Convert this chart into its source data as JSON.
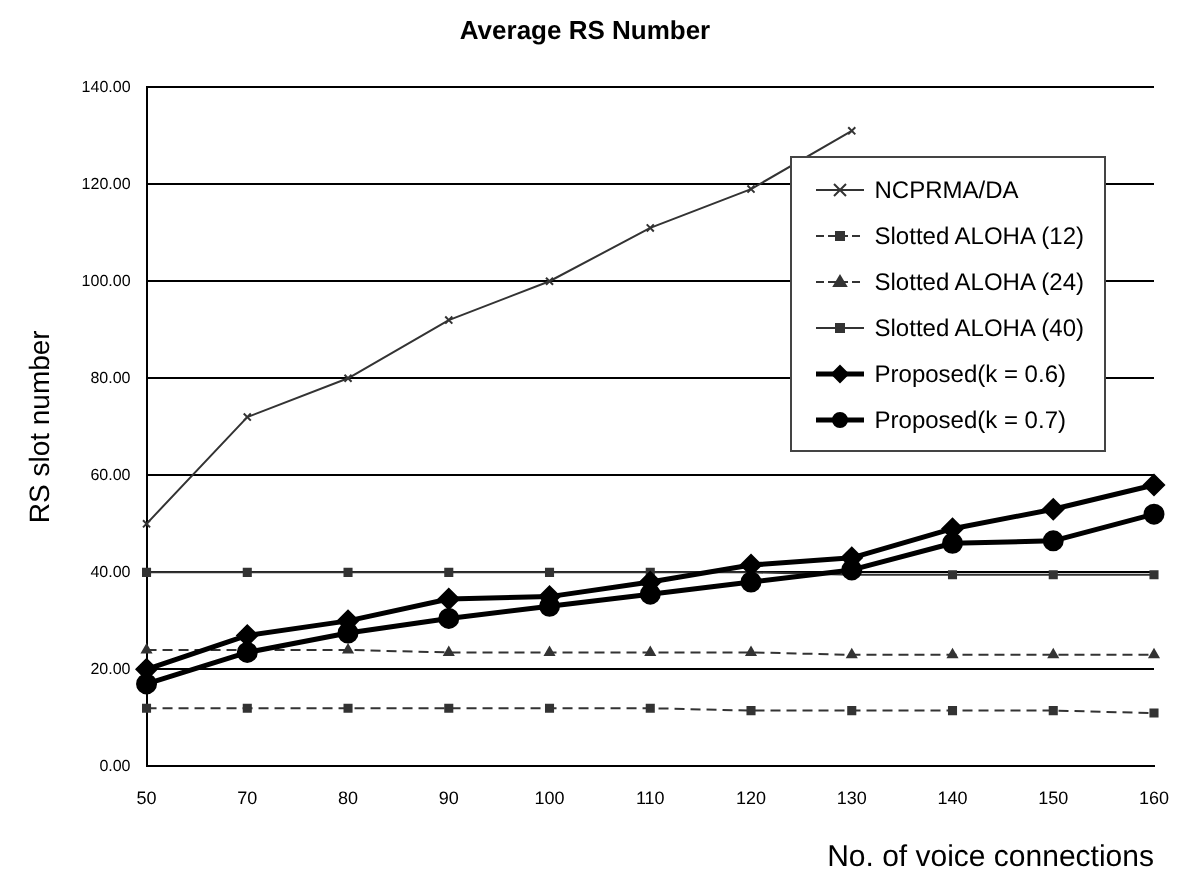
{
  "chart_data": {
    "type": "line",
    "title": "Average RS Number",
    "xlabel": "No. of voice connections",
    "ylabel": "RS slot number",
    "categories": [
      "50",
      "70",
      "80",
      "90",
      "100",
      "110",
      "120",
      "130",
      "140",
      "150",
      "160"
    ],
    "series": [
      {
        "name": "NCPRMA/DA",
        "color": "#333333",
        "marker": "cross",
        "line_style": "solid",
        "values": [
          50,
          72,
          80,
          92,
          100,
          111,
          119,
          131,
          null,
          null,
          null
        ]
      },
      {
        "name": "Slotted ALOHA (12)",
        "color": "#333333",
        "marker": "square",
        "line_style": "dashed",
        "values": [
          12,
          12,
          12,
          12,
          12,
          12,
          11.5,
          11.5,
          11.5,
          11.5,
          11
        ]
      },
      {
        "name": "Slotted ALOHA (24)",
        "color": "#333333",
        "marker": "triangle",
        "line_style": "dashed",
        "values": [
          24,
          24,
          24,
          23.5,
          23.5,
          23.5,
          23.5,
          23,
          23,
          23,
          23
        ]
      },
      {
        "name": "Slotted ALOHA (40)",
        "color": "#333333",
        "marker": "square",
        "line_style": "solid",
        "values": [
          40,
          40,
          40,
          40,
          40,
          40,
          40,
          39.5,
          39.5,
          39.5,
          39.5
        ]
      },
      {
        "name": "Proposed(k = 0.6)",
        "color": "#000000",
        "marker": "diamond",
        "line_style": "solid",
        "values": [
          20,
          27,
          30,
          34.5,
          35,
          38,
          41.5,
          43,
          49,
          53,
          58
        ]
      },
      {
        "name": "Proposed(k = 0.7)",
        "color": "#000000",
        "marker": "circle",
        "line_style": "solid",
        "values": [
          17,
          23.5,
          27.5,
          30.5,
          33,
          35.5,
          38,
          40.5,
          46,
          46.5,
          52
        ]
      }
    ],
    "ylim": [
      0,
      140
    ],
    "yticks": [
      {
        "value": 0,
        "label": "0.00"
      },
      {
        "value": 20,
        "label": "20.00"
      },
      {
        "value": 40,
        "label": "40.00"
      },
      {
        "value": 60,
        "label": "60.00"
      },
      {
        "value": 80,
        "label": "80.00"
      },
      {
        "value": 100,
        "label": "100.00"
      },
      {
        "value": 120,
        "label": "120.00"
      },
      {
        "value": 140,
        "label": "140.00"
      }
    ],
    "grid": "y",
    "legend": "top right"
  }
}
